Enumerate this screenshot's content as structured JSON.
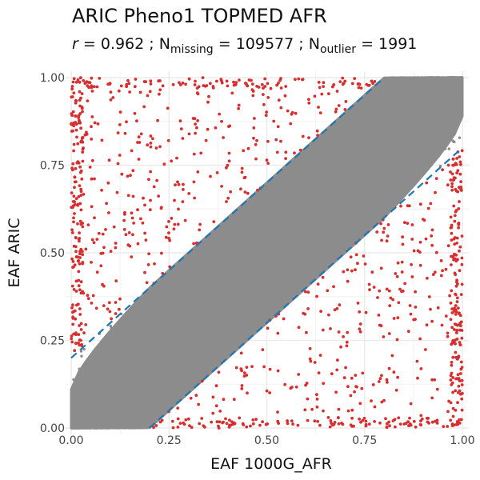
{
  "chart_data": {
    "type": "scatter",
    "title": "ARIC Pheno1 TOPMED AFR",
    "subtitle": {
      "r_label": "r",
      "r_value": "= 0.962 ;",
      "n_symbol": "N",
      "missing_sub": "missing",
      "missing_value": "= 109577 ;",
      "outlier_sub": "outlier",
      "outlier_value": "= 1991"
    },
    "xlabel": "EAF 1000G_AFR",
    "ylabel": "EAF ARIC",
    "xlim": [
      0,
      1
    ],
    "ylim": [
      0,
      1
    ],
    "x_ticks": [
      "0.00",
      "0.25",
      "0.50",
      "0.75",
      "1.00"
    ],
    "y_ticks": [
      "0.00",
      "0.25",
      "0.50",
      "0.75",
      "1.00"
    ],
    "grid": true,
    "reference_lines": [
      {
        "slope": 1,
        "intercept": 0.2,
        "style": "dashed"
      },
      {
        "slope": 1,
        "intercept": -0.2,
        "style": "dashed"
      }
    ],
    "series": [
      {
        "role": "within",
        "band_halfwidth": 0.2,
        "color": "#8c8c8c"
      },
      {
        "role": "outlier",
        "count": 1991,
        "color": "#d62f2f"
      }
    ],
    "colors": {
      "inlier": "#8c8c8c",
      "outlier": "#d62f2f",
      "reference": "#1f77b4",
      "grid": "#ebebeb"
    }
  }
}
